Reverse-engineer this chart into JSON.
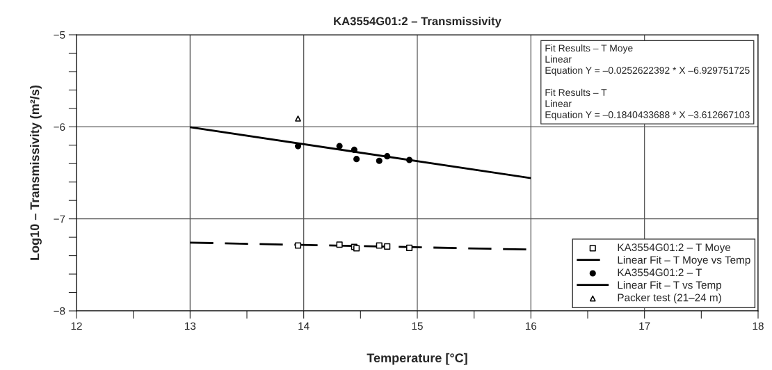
{
  "chart_data": {
    "type": "scatter",
    "title": "KA3554G01:2 – Transmissivity",
    "xlabel": "Temperature [°C]",
    "ylabel": "Log10 – Transmissivity (m²/s)",
    "annotations": [
      "Fit Results – T Moye\nLinear\nEquation Y = –0.0252622392 * X –6.929751725\n\nFit Results – T\nLinear\nEquation Y = –0.1840433688 * X –3.612667103"
    ],
    "series": [
      {
        "name": "KA3554G01:2 – T Moye",
        "type": "scatter",
        "marker": "square",
        "color": "#000000",
        "x": [
          13.95,
          14.315,
          14.445,
          14.465,
          14.665,
          14.735,
          14.93
        ],
        "values": [
          -7.29,
          -7.28,
          -7.305,
          -7.32,
          -7.29,
          -7.3,
          -7.315
        ]
      },
      {
        "name": "Linear Fit – T Moye vs Temp",
        "type": "line",
        "line_style": "dashed",
        "color": "#000000",
        "x": [
          13,
          16
        ],
        "values": [
          -7.258,
          -7.334
        ]
      },
      {
        "name": "KA3554G01:2 – T",
        "type": "scatter",
        "marker": "circle",
        "color": "#000000",
        "x": [
          13.95,
          14.315,
          14.445,
          14.465,
          14.665,
          14.735,
          14.93
        ],
        "values": [
          -6.21,
          -6.21,
          -6.25,
          -6.35,
          -6.37,
          -6.32,
          -6.36
        ]
      },
      {
        "name": "Linear Fit – T vs Temp",
        "type": "line",
        "line_style": "solid",
        "color": "#000000",
        "x": [
          13,
          16
        ],
        "values": [
          -6.005,
          -6.557
        ]
      },
      {
        "name": "Packer test (21–24 m)",
        "type": "scatter",
        "marker": "triangle",
        "color": "#000000",
        "x": [
          13.95
        ],
        "values": [
          -5.91
        ]
      }
    ],
    "xlim": [
      12,
      18
    ],
    "ylim": [
      -8,
      -5
    ],
    "xticks": [
      12,
      {
        "value": 12.5,
        "label": null
      },
      13,
      {
        "value": 13.5,
        "label": null
      },
      14,
      {
        "value": 14.5,
        "label": null
      },
      15,
      {
        "value": 15.5,
        "label": null
      },
      16,
      {
        "value": 16.5,
        "label": null
      },
      17,
      {
        "value": 17.5,
        "label": null
      },
      18
    ],
    "yticks": [
      {
        "value": -8,
        "label": "−8"
      },
      {
        "value": -7.8,
        "label": null
      },
      {
        "value": -7.6,
        "label": null
      },
      {
        "value": -7.4,
        "label": null
      },
      {
        "value": -7.2,
        "label": null
      },
      {
        "value": -7,
        "label": "−7"
      },
      {
        "value": -6.8,
        "label": null
      },
      {
        "value": -6.6,
        "label": null
      },
      {
        "value": -6.4,
        "label": null
      },
      {
        "value": -6.2,
        "label": null
      },
      {
        "value": -6,
        "label": "−6"
      },
      {
        "value": -5.8,
        "label": null
      },
      {
        "value": -5.6,
        "label": null
      },
      {
        "value": -5.4,
        "label": null
      },
      {
        "value": -5.2,
        "label": null
      },
      {
        "value": -5,
        "label": "−5"
      }
    ],
    "grid": true,
    "legend": "bottom right"
  }
}
